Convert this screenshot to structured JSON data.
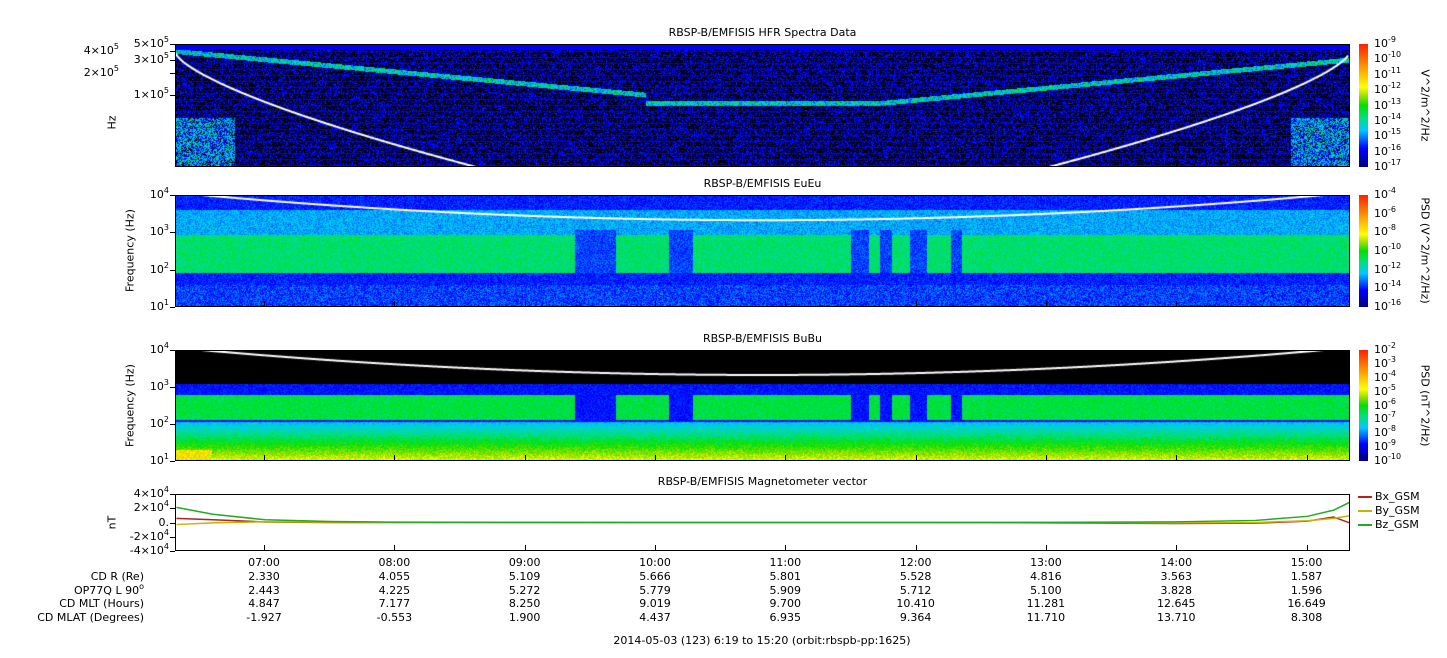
{
  "chart_data": [
    {
      "type": "heatmap",
      "title": "RBSP-B/EMFISIS  HFR Spectra Data",
      "ylabel": "Hz",
      "yscale": "log",
      "ylim": [
        10000,
        500000
      ],
      "yticks": [
        {
          "m": "5×10",
          "e": "5",
          "v": 500000
        },
        {
          "m": "4×10",
          "e": "5",
          "v": 400000
        },
        {
          "m": "3×10",
          "e": "5",
          "v": 300000
        },
        {
          "m": "2×10",
          "e": "5",
          "v": 200000
        },
        {
          "m": "1×10",
          "e": "5",
          "v": 100000
        }
      ],
      "colorbar": {
        "label": "V^2/m^2/Hz",
        "ticks": [
          {
            "e": "-9"
          },
          {
            "e": "-10"
          },
          {
            "e": "-11"
          },
          {
            "e": "-12"
          },
          {
            "e": "-13"
          },
          {
            "e": "-14"
          },
          {
            "e": "-15"
          },
          {
            "e": "-16"
          },
          {
            "e": "-17"
          }
        ]
      }
    },
    {
      "type": "heatmap",
      "title": "RBSP-B/EMFISIS  EuEu",
      "ylabel": "Frequency (Hz)",
      "yscale": "log",
      "ylim": [
        10,
        10000
      ],
      "yticks": [
        {
          "m": "10",
          "e": "4"
        },
        {
          "m": "10",
          "e": "3"
        },
        {
          "m": "10",
          "e": "2"
        },
        {
          "m": "10",
          "e": "1"
        }
      ],
      "colorbar": {
        "label": "PSD (V^2/m^2/Hz)",
        "ticks": [
          {
            "e": "-4"
          },
          {
            "e": "-6"
          },
          {
            "e": "-8"
          },
          {
            "e": "-10"
          },
          {
            "e": "-12"
          },
          {
            "e": "-14"
          },
          {
            "e": "-16"
          }
        ]
      }
    },
    {
      "type": "heatmap",
      "title": "RBSP-B/EMFISIS  BuBu",
      "ylabel": "Frequency (Hz)",
      "yscale": "log",
      "ylim": [
        10,
        10000
      ],
      "yticks": [
        {
          "m": "10",
          "e": "4"
        },
        {
          "m": "10",
          "e": "3"
        },
        {
          "m": "10",
          "e": "2"
        },
        {
          "m": "10",
          "e": "1"
        }
      ],
      "colorbar": {
        "label": "PSD (nT^2/Hz)",
        "ticks": [
          {
            "e": "-2"
          },
          {
            "e": "-3"
          },
          {
            "e": "-4"
          },
          {
            "e": "-5"
          },
          {
            "e": "-6"
          },
          {
            "e": "-7"
          },
          {
            "e": "-8"
          },
          {
            "e": "-9"
          },
          {
            "e": "-10"
          }
        ]
      }
    },
    {
      "type": "line",
      "title": "RBSP-B/EMFISIS  Magnetometer vector",
      "ylabel": "nT",
      "ylim": [
        -40000,
        40000
      ],
      "yticks": [
        {
          "m": "4×10",
          "e": "4"
        },
        {
          "m": "2×10",
          "e": "4"
        },
        {
          "m": "0.",
          "e": ""
        },
        {
          "m": "-2×10",
          "e": "4"
        },
        {
          "m": "-4×10",
          "e": "4"
        }
      ],
      "x_hours": [
        6.32,
        6.6,
        7.0,
        7.5,
        8,
        9,
        10,
        11,
        12,
        13,
        14,
        14.6,
        15.0,
        15.2,
        15.33
      ],
      "series": [
        {
          "name": "Bx_GSM",
          "color": "#b22222",
          "values": [
            6000,
            4000,
            800,
            0,
            0,
            0,
            0,
            0,
            0,
            -500,
            -1500,
            -1000,
            2000,
            8000,
            -1000
          ]
        },
        {
          "name": "By_GSM",
          "color": "#c8b400",
          "values": [
            -3000,
            -500,
            1000,
            600,
            300,
            0,
            0,
            0,
            0,
            0,
            -500,
            0,
            2500,
            6000,
            10000
          ]
        },
        {
          "name": "Bz_GSM",
          "color": "#22aa22",
          "values": [
            22000,
            12000,
            4000,
            1500,
            500,
            100,
            0,
            0,
            0,
            200,
            1000,
            3000,
            9000,
            18000,
            30000
          ]
        }
      ]
    }
  ],
  "xaxis": {
    "start_hours": 6.3167,
    "end_hours": 15.3333,
    "ticks": [
      "07:00",
      "08:00",
      "09:00",
      "10:00",
      "11:00",
      "12:00",
      "13:00",
      "14:00",
      "15:00"
    ]
  },
  "ephemeris": {
    "labels": [
      "CD R (Re)",
      "OP77Q L 90",
      "CD MLT (Hours)",
      "CD MLAT (Degrees)"
    ],
    "label2_sup": "o",
    "rows": [
      [
        "2.330",
        "4.055",
        "5.109",
        "5.666",
        "5.801",
        "5.528",
        "4.816",
        "3.563",
        "1.587"
      ],
      [
        "2.443",
        "4.225",
        "5.272",
        "5.779",
        "5.909",
        "5.712",
        "5.100",
        "3.828",
        "1.596"
      ],
      [
        "4.847",
        "7.177",
        "8.250",
        "9.019",
        "9.700",
        "10.410",
        "11.281",
        "12.645",
        "16.649"
      ],
      [
        "-1.927",
        "-0.553",
        "1.900",
        "4.437",
        "6.935",
        "9.364",
        "11.710",
        "13.710",
        "8.308"
      ]
    ]
  },
  "footer": "2014-05-03 (123) 6:19 to 15:20 (orbit:rbspb-pp:1625)"
}
